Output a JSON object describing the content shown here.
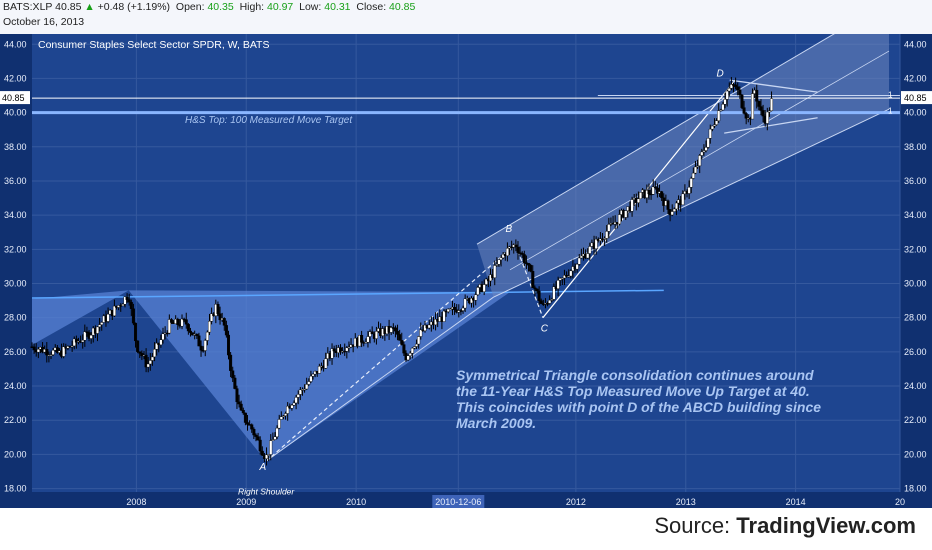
{
  "header": {
    "symbol": "BATS:XLP",
    "last": "40.85",
    "arrow": "▲",
    "change": "+0.48 (+1.19%)",
    "open_label": "Open:",
    "open": "40.35",
    "high_label": "High:",
    "high": "40.97",
    "low_label": "Low:",
    "low": "40.31",
    "close_label": "Close:",
    "close": "40.85",
    "date": "October 16, 2013"
  },
  "colors": {
    "background": "#103070",
    "chart_area": "#1e4590",
    "grid": "#35599e",
    "up_candle": "#ffffff",
    "down_candle": "#000000",
    "channel_fill": "#6d86c0",
    "hs_fill": "#5b86d8",
    "annotation_text": "#a9c5f2"
  },
  "chart_data": {
    "type": "candlestick",
    "title": "Consumer Staples Select Sector SPDR, W, BATS",
    "x_ticks": [
      "2008",
      "2009",
      "2010",
      "2010-12-06",
      "2012",
      "2013",
      "2014",
      "20"
    ],
    "y_ticks": [
      "18.00",
      "20.00",
      "22.00",
      "24.00",
      "26.00",
      "28.00",
      "30.00",
      "32.00",
      "34.00",
      "36.00",
      "38.00",
      "40.00",
      "42.00",
      "44.00"
    ],
    "ylim": [
      17.8,
      44.6
    ],
    "xlim": [
      2007.05,
      2014.95
    ],
    "last_price_label": "40.85",
    "last_price": 40.85,
    "target_price": 40.0,
    "grid": true,
    "path_points": [
      [
        2007.05,
        26.3
      ],
      [
        2007.3,
        25.9
      ],
      [
        2007.6,
        27.2
      ],
      [
        2007.85,
        28.8
      ],
      [
        2007.93,
        29.4
      ],
      [
        2008.0,
        26.4
      ],
      [
        2008.1,
        25.2
      ],
      [
        2008.3,
        27.6
      ],
      [
        2008.45,
        27.7
      ],
      [
        2008.6,
        26.2
      ],
      [
        2008.72,
        28.7
      ],
      [
        2008.8,
        27.5
      ],
      [
        2008.88,
        24.2
      ],
      [
        2008.95,
        22.4
      ],
      [
        2009.05,
        21.5
      ],
      [
        2009.18,
        19.8
      ],
      [
        2009.35,
        22.6
      ],
      [
        2009.6,
        24.5
      ],
      [
        2009.8,
        26.1
      ],
      [
        2010.0,
        26.6
      ],
      [
        2010.25,
        27.2
      ],
      [
        2010.35,
        27.3
      ],
      [
        2010.45,
        25.7
      ],
      [
        2010.6,
        27.2
      ],
      [
        2010.8,
        28.1
      ],
      [
        2011.0,
        28.9
      ],
      [
        2011.2,
        30.1
      ],
      [
        2011.35,
        31.8
      ],
      [
        2011.45,
        32.3
      ],
      [
        2011.55,
        31.2
      ],
      [
        2011.62,
        29.8
      ],
      [
        2011.7,
        28.6
      ],
      [
        2011.85,
        30.0
      ],
      [
        2012.0,
        31.2
      ],
      [
        2012.2,
        32.5
      ],
      [
        2012.4,
        33.9
      ],
      [
        2012.6,
        35.2
      ],
      [
        2012.75,
        35.5
      ],
      [
        2012.85,
        34.2
      ],
      [
        2012.98,
        35.0
      ],
      [
        2013.15,
        37.6
      ],
      [
        2013.28,
        39.8
      ],
      [
        2013.38,
        41.3
      ],
      [
        2013.45,
        41.6
      ],
      [
        2013.52,
        40.4
      ],
      [
        2013.58,
        39.4
      ],
      [
        2013.62,
        41.5
      ],
      [
        2013.68,
        40.0
      ],
      [
        2013.73,
        39.6
      ],
      [
        2013.79,
        40.85
      ]
    ],
    "annotations": {
      "hs_target": "H&S Top: 100 Measured Move Target",
      "point_a": "A",
      "right_shoulder": "Right Shoulder",
      "point_b": "B",
      "point_c": "C",
      "point_d": "D",
      "fib_1a": "1",
      "fib_1b": "1",
      "commentary": [
        "Symmetrical Triangle consolidation continues around",
        "the 11-Year H&S Top Measured Move Up Target at 40.",
        "This coincides with point D of the ABCD building since",
        "March 2009."
      ]
    }
  },
  "footer": {
    "source_prefix": "Source: ",
    "source_brand": "TradingView.com"
  }
}
